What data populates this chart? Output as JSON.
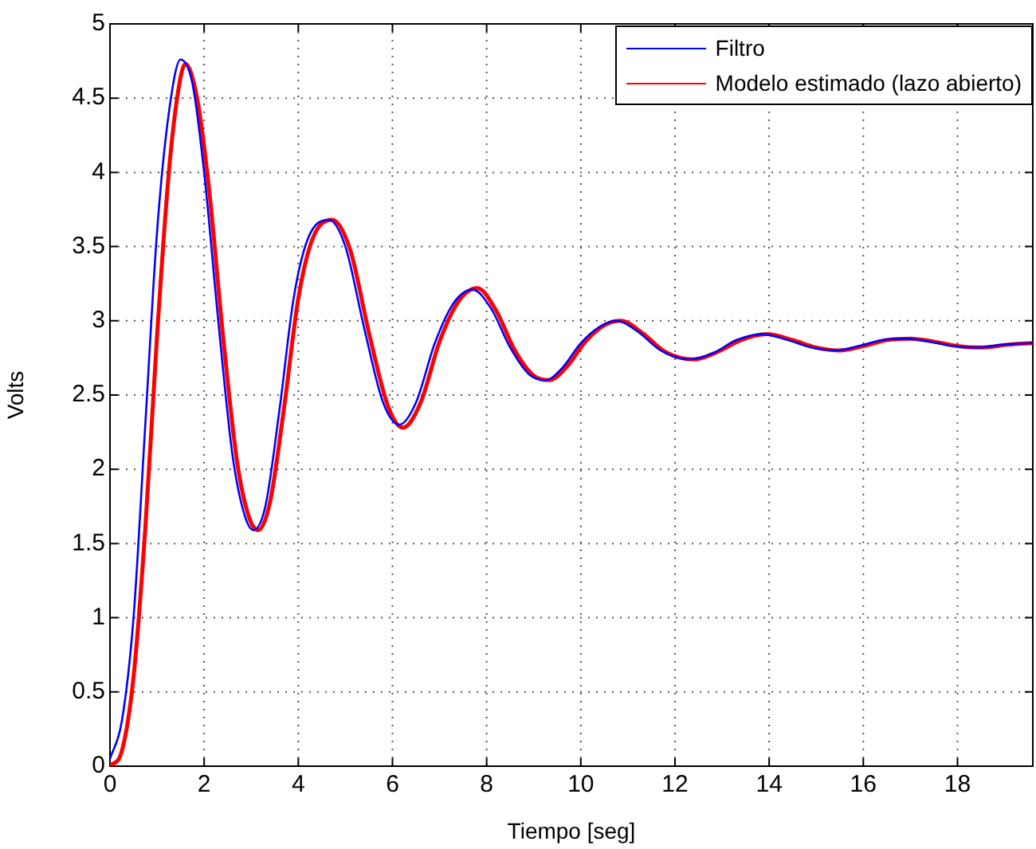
{
  "chart_data": {
    "type": "line",
    "xlabel": "Tiempo [seg]",
    "ylabel": "Volts",
    "xlim": [
      0,
      19.6
    ],
    "ylim": [
      0,
      5
    ],
    "xticks": [
      0,
      2,
      4,
      6,
      8,
      10,
      12,
      14,
      16,
      18
    ],
    "yticks": [
      0,
      0.5,
      1,
      1.5,
      2,
      2.5,
      3,
      3.5,
      4,
      4.5,
      5
    ],
    "grid": true,
    "legend": "top right",
    "marker": "none",
    "line_style": "solid",
    "series": [
      {
        "name": "Filtro",
        "color": "#0000ff",
        "x": [
          0,
          0.25,
          0.5,
          0.75,
          1.0,
          1.25,
          1.5,
          1.75,
          2.0,
          2.3,
          2.6,
          2.85,
          3.05,
          3.3,
          3.6,
          3.9,
          4.2,
          4.65,
          5.0,
          5.4,
          5.8,
          6.15,
          6.5,
          6.9,
          7.3,
          7.7,
          8.1,
          8.5,
          8.9,
          9.25,
          9.6,
          10.0,
          10.4,
          10.75,
          11.2,
          11.7,
          12.3,
          12.8,
          13.3,
          13.85,
          14.4,
          14.9,
          15.4,
          15.9,
          16.4,
          16.9,
          17.4,
          17.9,
          18.4,
          19.0,
          19.6
        ],
        "values": [
          0.05,
          0.3,
          1.0,
          2.3,
          3.6,
          4.4,
          4.76,
          4.6,
          4.0,
          3.0,
          2.1,
          1.7,
          1.59,
          1.75,
          2.4,
          3.15,
          3.55,
          3.68,
          3.5,
          2.95,
          2.45,
          2.3,
          2.45,
          2.85,
          3.12,
          3.21,
          3.08,
          2.82,
          2.64,
          2.6,
          2.68,
          2.85,
          2.96,
          3.0,
          2.93,
          2.8,
          2.74,
          2.78,
          2.87,
          2.91,
          2.87,
          2.82,
          2.8,
          2.83,
          2.87,
          2.88,
          2.86,
          2.83,
          2.82,
          2.84,
          2.85
        ]
      },
      {
        "name": "Modelo estimado (lazo abierto)",
        "color": "#ff0000",
        "x": [
          0,
          0.25,
          0.5,
          0.75,
          1.0,
          1.25,
          1.45,
          1.6,
          1.85,
          2.1,
          2.4,
          2.7,
          2.95,
          3.15,
          3.4,
          3.7,
          4.0,
          4.3,
          4.72,
          5.1,
          5.5,
          5.9,
          6.22,
          6.6,
          7.0,
          7.4,
          7.8,
          8.2,
          8.6,
          9.0,
          9.33,
          9.7,
          10.1,
          10.5,
          10.85,
          11.3,
          11.8,
          12.4,
          12.9,
          13.4,
          13.95,
          14.5,
          15.0,
          15.5,
          16.0,
          16.5,
          17.0,
          17.5,
          18.0,
          18.5,
          19.1,
          19.6
        ],
        "values": [
          0,
          0.1,
          0.6,
          1.6,
          2.9,
          4.0,
          4.55,
          4.73,
          4.5,
          3.9,
          2.9,
          2.05,
          1.68,
          1.59,
          1.78,
          2.42,
          3.15,
          3.55,
          3.68,
          3.48,
          2.92,
          2.43,
          2.28,
          2.45,
          2.86,
          3.13,
          3.22,
          3.07,
          2.8,
          2.63,
          2.6,
          2.69,
          2.86,
          2.97,
          3.0,
          2.92,
          2.79,
          2.74,
          2.79,
          2.87,
          2.91,
          2.87,
          2.82,
          2.8,
          2.83,
          2.87,
          2.88,
          2.86,
          2.83,
          2.82,
          2.84,
          2.85
        ]
      }
    ]
  }
}
